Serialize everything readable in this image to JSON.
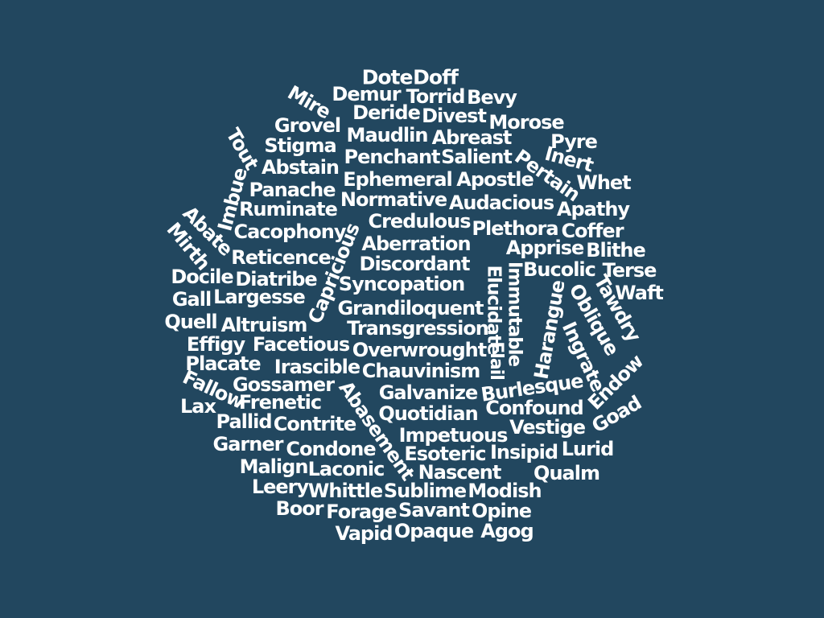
{
  "colors": {
    "background": "#22475f",
    "text": "#ffffff"
  },
  "words": [
    "Dote",
    "Doff",
    "Demur",
    "Torrid",
    "Bevy",
    "Mire",
    "Deride",
    "Divest",
    "Morose",
    "Grovel",
    "Maudlin",
    "Abreast",
    "Tout",
    "Pyre",
    "Stigma",
    "Penchant",
    "Salient",
    "Inert",
    "Abstain",
    "Pertain",
    "Imbue",
    "Ephemeral",
    "Apostle",
    "Whet",
    "Panache",
    "Normative",
    "Audacious",
    "Ruminate",
    "Apathy",
    "Credulous",
    "Abate",
    "Cacophony",
    "Plethora",
    "Coffer",
    "Mirth",
    "Aberration",
    "Capricious",
    "Apprise",
    "Blithe",
    "Reticence",
    "Elucidate",
    "Immutable",
    "Discordant",
    "Bucolic",
    "Terse",
    "Docile",
    "Diatribe",
    "Syncopation",
    "Tawdry",
    "Waft",
    "Gall",
    "Largesse",
    "Harangue",
    "Oblique",
    "Grandiloquent",
    "Quell",
    "Altruism",
    "Transgression",
    "Flail",
    "Ingrate",
    "Effigy",
    "Facetious",
    "Overwrought",
    "Placate",
    "Irascible",
    "Chauvinism",
    "Endow",
    "Fallow",
    "Gossamer",
    "Burlesque",
    "Abasement",
    "Galvanize",
    "Lax",
    "Frenetic",
    "Confound",
    "Goad",
    "Pallid",
    "Contrite",
    "Quotidian",
    "Vestige",
    "Impetuous",
    "Garner",
    "Lurid",
    "Condone",
    "Esoteric",
    "Insipid",
    "Malign",
    "Laconic",
    "Nascent",
    "Qualm",
    "Leery",
    "Whittle",
    "Sublime",
    "Modish",
    "Boor",
    "Forage",
    "Savant",
    "Opine",
    "Vapid",
    "Opaque",
    "Agog"
  ]
}
